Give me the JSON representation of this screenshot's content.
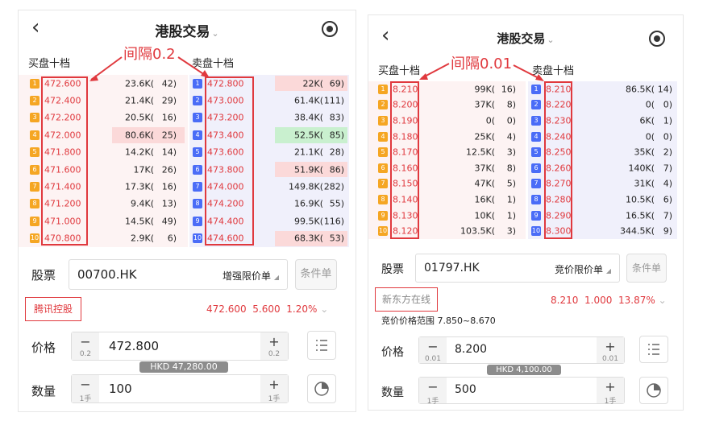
{
  "p1": {
    "title": "港股交易",
    "dropdown_glyph": "⌄",
    "back_glyph": "‹",
    "buy_title": "买盘十档",
    "sell_title": "卖盘十档",
    "annotation": "间隔0.2",
    "buy": [
      {
        "lvl": "1",
        "price": "472.600",
        "vol": "23.6K(",
        "cnt": "42)"
      },
      {
        "lvl": "2",
        "price": "472.400",
        "vol": "21.4K(",
        "cnt": "29)"
      },
      {
        "lvl": "3",
        "price": "472.200",
        "vol": "20.5K(",
        "cnt": "16)"
      },
      {
        "lvl": "4",
        "price": "472.000",
        "vol": "80.6K(",
        "cnt": "25)"
      },
      {
        "lvl": "5",
        "price": "471.800",
        "vol": "14.2K(",
        "cnt": "14)"
      },
      {
        "lvl": "6",
        "price": "471.600",
        "vol": "17K(",
        "cnt": "26)"
      },
      {
        "lvl": "7",
        "price": "471.400",
        "vol": "17.3K(",
        "cnt": "16)"
      },
      {
        "lvl": "8",
        "price": "471.200",
        "vol": "9.4K(",
        "cnt": "13)"
      },
      {
        "lvl": "9",
        "price": "471.000",
        "vol": "14.5K(",
        "cnt": "49)"
      },
      {
        "lvl": "10",
        "price": "470.800",
        "vol": "2.9K(",
        "cnt": "6)"
      }
    ],
    "sell": [
      {
        "lvl": "1",
        "price": "472.800",
        "vol": "22K(",
        "cnt": "69)"
      },
      {
        "lvl": "2",
        "price": "473.000",
        "vol": "61.4K(",
        "cnt": "111)"
      },
      {
        "lvl": "3",
        "price": "473.200",
        "vol": "38.4K(",
        "cnt": "83)"
      },
      {
        "lvl": "4",
        "price": "473.400",
        "vol": "52.5K(",
        "cnt": "85)"
      },
      {
        "lvl": "5",
        "price": "473.600",
        "vol": "21.1K(",
        "cnt": "28)"
      },
      {
        "lvl": "6",
        "price": "473.800",
        "vol": "51.9K(",
        "cnt": "86)"
      },
      {
        "lvl": "7",
        "price": "474.000",
        "vol": "149.8K(",
        "cnt": "282)"
      },
      {
        "lvl": "8",
        "price": "474.200",
        "vol": "16.9K(",
        "cnt": "55)"
      },
      {
        "lvl": "9",
        "price": "474.400",
        "vol": "99.5K(",
        "cnt": "116)"
      },
      {
        "lvl": "10",
        "price": "474.600",
        "vol": "68.3K(",
        "cnt": "53)"
      }
    ],
    "stock_label": "股票",
    "stock_code": "00700.HK",
    "order_type": "增强限价单",
    "cond_btn": "条件单",
    "stock_name": "腾讯控股",
    "quote_price": "472.600",
    "quote_change": "5.600",
    "quote_pct": "1.20%",
    "price_label": "价格",
    "price_value": "472.800",
    "price_step": "0.2",
    "amount_tip": "HKD 47,280.00",
    "qty_label": "数量",
    "qty_value": "100",
    "qty_unit": "1手",
    "minus": "−",
    "plus": "+"
  },
  "p2": {
    "title": "港股交易",
    "dropdown_glyph": "⌄",
    "back_glyph": "‹",
    "buy_title": "买盘十档",
    "sell_title": "卖盘十档",
    "annotation": "间隔0.01",
    "buy": [
      {
        "lvl": "1",
        "price": "8.210",
        "vol": "99K(",
        "cnt": "16)"
      },
      {
        "lvl": "2",
        "price": "8.200",
        "vol": "37K(",
        "cnt": "8)"
      },
      {
        "lvl": "3",
        "price": "8.190",
        "vol": "0(",
        "cnt": "0)"
      },
      {
        "lvl": "4",
        "price": "8.180",
        "vol": "25K(",
        "cnt": "4)"
      },
      {
        "lvl": "5",
        "price": "8.170",
        "vol": "12.5K(",
        "cnt": "3)"
      },
      {
        "lvl": "6",
        "price": "8.160",
        "vol": "37K(",
        "cnt": "8)"
      },
      {
        "lvl": "7",
        "price": "8.150",
        "vol": "47K(",
        "cnt": "5)"
      },
      {
        "lvl": "8",
        "price": "8.140",
        "vol": "16K(",
        "cnt": "1)"
      },
      {
        "lvl": "9",
        "price": "8.130",
        "vol": "10K(",
        "cnt": "1)"
      },
      {
        "lvl": "10",
        "price": "8.120",
        "vol": "103.5K(",
        "cnt": "3)"
      }
    ],
    "sell": [
      {
        "lvl": "1",
        "price": "8.210",
        "vol": "86.5K(",
        "cnt": "14)"
      },
      {
        "lvl": "2",
        "price": "8.220",
        "vol": "0(",
        "cnt": "0)"
      },
      {
        "lvl": "3",
        "price": "8.230",
        "vol": "6K(",
        "cnt": "1)"
      },
      {
        "lvl": "4",
        "price": "8.240",
        "vol": "0(",
        "cnt": "0)"
      },
      {
        "lvl": "5",
        "price": "8.250",
        "vol": "35K(",
        "cnt": "2)"
      },
      {
        "lvl": "6",
        "price": "8.260",
        "vol": "140K(",
        "cnt": "7)"
      },
      {
        "lvl": "7",
        "price": "8.270",
        "vol": "31K(",
        "cnt": "4)"
      },
      {
        "lvl": "8",
        "price": "8.280",
        "vol": "10.5K(",
        "cnt": "6)"
      },
      {
        "lvl": "9",
        "price": "8.290",
        "vol": "16.5K(",
        "cnt": "7)"
      },
      {
        "lvl": "10",
        "price": "8.300",
        "vol": "344.5K(",
        "cnt": "9)"
      }
    ],
    "stock_label": "股票",
    "stock_code": "01797.HK",
    "order_type": "竞价限价单",
    "cond_btn": "条件单",
    "stock_name": "新东方在线",
    "quote_price": "8.210",
    "quote_change": "1.000",
    "quote_pct": "13.87%",
    "range_text": "竞价价格范围 7.850~8.670",
    "price_label": "价格",
    "price_value": "8.200",
    "price_step": "0.01",
    "amount_tip": "HKD 4,100.00",
    "qty_label": "数量",
    "qty_value": "500",
    "qty_unit": "1手",
    "minus": "−",
    "plus": "+"
  },
  "colors": {
    "red": "#e0393e",
    "buy_badge": "#f5a623",
    "sell_badge": "#4a6cf7",
    "buy_bg": "#fdf3f3",
    "sell_bg": "#f0f0fb",
    "highlight_red": "#fbd9d9",
    "highlight_green": "#c9f0cf"
  }
}
